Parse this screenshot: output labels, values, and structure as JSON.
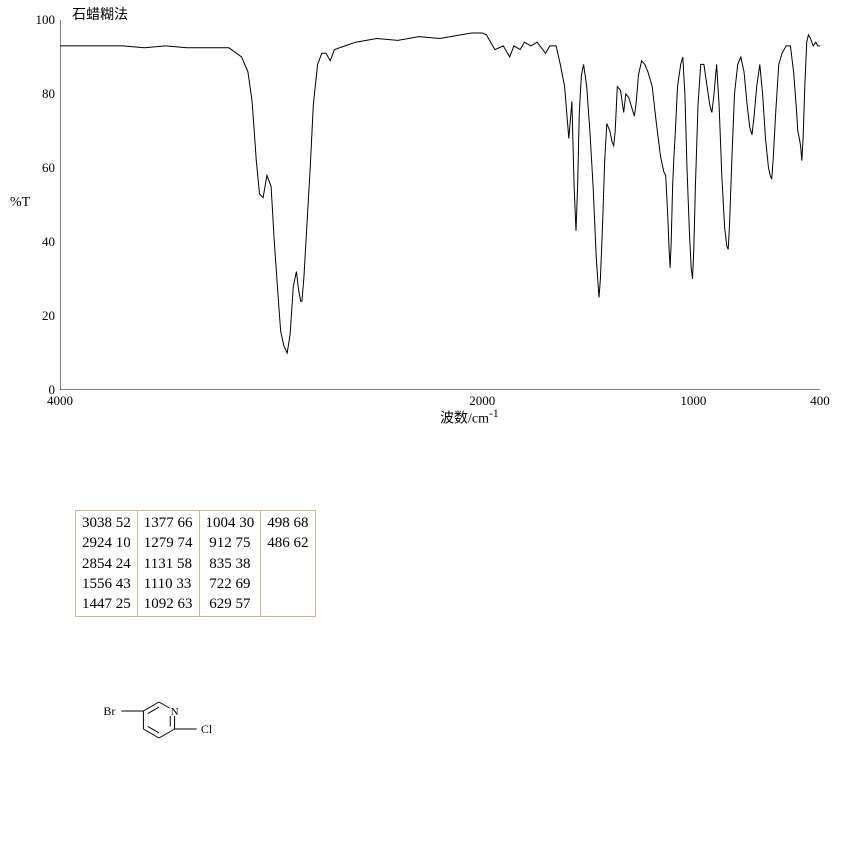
{
  "chart": {
    "title": "石蜡糊法",
    "ylabel": "%T",
    "xlabel": "波数/cm",
    "xlabel_sup": "-1",
    "xlim": [
      4000,
      400
    ],
    "ylim": [
      0,
      100
    ],
    "yticks": [
      0,
      20,
      40,
      60,
      80,
      100
    ],
    "xticks": [
      4000,
      2000,
      1000,
      400
    ],
    "line_color": "#000000",
    "background_color": "#ffffff",
    "axis_color": "#000000",
    "line_width": 1,
    "points": [
      [
        4000,
        93
      ],
      [
        3900,
        93
      ],
      [
        3800,
        93
      ],
      [
        3700,
        93
      ],
      [
        3600,
        92.5
      ],
      [
        3500,
        93
      ],
      [
        3400,
        92.5
      ],
      [
        3300,
        92.5
      ],
      [
        3200,
        92.5
      ],
      [
        3140,
        90
      ],
      [
        3110,
        86
      ],
      [
        3090,
        78
      ],
      [
        3070,
        62
      ],
      [
        3055,
        53
      ],
      [
        3038,
        52
      ],
      [
        3020,
        58
      ],
      [
        3000,
        55
      ],
      [
        2985,
        40
      ],
      [
        2970,
        28
      ],
      [
        2955,
        16
      ],
      [
        2940,
        12
      ],
      [
        2924,
        10
      ],
      [
        2910,
        15
      ],
      [
        2895,
        28
      ],
      [
        2880,
        32
      ],
      [
        2870,
        27
      ],
      [
        2860,
        24
      ],
      [
        2854,
        24
      ],
      [
        2845,
        30
      ],
      [
        2830,
        45
      ],
      [
        2815,
        60
      ],
      [
        2800,
        77
      ],
      [
        2780,
        88
      ],
      [
        2760,
        91
      ],
      [
        2740,
        91
      ],
      [
        2720,
        89
      ],
      [
        2700,
        92
      ],
      [
        2650,
        93
      ],
      [
        2600,
        94
      ],
      [
        2500,
        95
      ],
      [
        2400,
        94.5
      ],
      [
        2300,
        95.5
      ],
      [
        2200,
        95
      ],
      [
        2100,
        96
      ],
      [
        2050,
        96.5
      ],
      [
        2000,
        96.5
      ],
      [
        1980,
        96
      ],
      [
        1940,
        92
      ],
      [
        1900,
        93
      ],
      [
        1870,
        90
      ],
      [
        1850,
        93
      ],
      [
        1820,
        92
      ],
      [
        1800,
        94
      ],
      [
        1770,
        93
      ],
      [
        1740,
        94
      ],
      [
        1700,
        91
      ],
      [
        1680,
        93
      ],
      [
        1650,
        93
      ],
      [
        1630,
        88
      ],
      [
        1610,
        82
      ],
      [
        1590,
        68
      ],
      [
        1575,
        78
      ],
      [
        1565,
        55
      ],
      [
        1556,
        43
      ],
      [
        1548,
        55
      ],
      [
        1540,
        75
      ],
      [
        1530,
        85
      ],
      [
        1520,
        88
      ],
      [
        1505,
        82
      ],
      [
        1490,
        70
      ],
      [
        1475,
        55
      ],
      [
        1460,
        36
      ],
      [
        1447,
        25
      ],
      [
        1440,
        30
      ],
      [
        1430,
        45
      ],
      [
        1420,
        62
      ],
      [
        1410,
        72
      ],
      [
        1395,
        70
      ],
      [
        1385,
        67
      ],
      [
        1377,
        66
      ],
      [
        1370,
        70
      ],
      [
        1360,
        82
      ],
      [
        1345,
        81
      ],
      [
        1330,
        75
      ],
      [
        1320,
        80
      ],
      [
        1305,
        79
      ],
      [
        1290,
        76
      ],
      [
        1279,
        74
      ],
      [
        1270,
        78
      ],
      [
        1260,
        85
      ],
      [
        1245,
        89
      ],
      [
        1230,
        88
      ],
      [
        1215,
        86
      ],
      [
        1195,
        82
      ],
      [
        1175,
        72
      ],
      [
        1155,
        63
      ],
      [
        1140,
        59
      ],
      [
        1131,
        58
      ],
      [
        1122,
        48
      ],
      [
        1115,
        38
      ],
      [
        1110,
        33
      ],
      [
        1105,
        40
      ],
      [
        1098,
        55
      ],
      [
        1092,
        63
      ],
      [
        1085,
        70
      ],
      [
        1075,
        82
      ],
      [
        1060,
        88
      ],
      [
        1050,
        90
      ],
      [
        1040,
        80
      ],
      [
        1030,
        60
      ],
      [
        1018,
        42
      ],
      [
        1010,
        33
      ],
      [
        1004,
        30
      ],
      [
        998,
        38
      ],
      [
        990,
        55
      ],
      [
        978,
        77
      ],
      [
        965,
        88
      ],
      [
        950,
        88
      ],
      [
        935,
        82
      ],
      [
        922,
        77
      ],
      [
        912,
        75
      ],
      [
        902,
        80
      ],
      [
        890,
        88
      ],
      [
        878,
        77
      ],
      [
        865,
        58
      ],
      [
        852,
        44
      ],
      [
        842,
        39
      ],
      [
        835,
        38
      ],
      [
        828,
        45
      ],
      [
        818,
        62
      ],
      [
        805,
        80
      ],
      [
        790,
        88
      ],
      [
        775,
        90
      ],
      [
        760,
        86
      ],
      [
        745,
        77
      ],
      [
        733,
        71
      ],
      [
        722,
        69
      ],
      [
        712,
        74
      ],
      [
        700,
        82
      ],
      [
        685,
        88
      ],
      [
        672,
        80
      ],
      [
        658,
        68
      ],
      [
        644,
        60
      ],
      [
        636,
        58
      ],
      [
        629,
        57
      ],
      [
        622,
        62
      ],
      [
        610,
        75
      ],
      [
        595,
        88
      ],
      [
        580,
        91
      ],
      [
        560,
        93
      ],
      [
        540,
        93
      ],
      [
        525,
        86
      ],
      [
        512,
        76
      ],
      [
        505,
        70
      ],
      [
        498,
        68
      ],
      [
        492,
        66
      ],
      [
        486,
        62
      ],
      [
        480,
        68
      ],
      [
        472,
        82
      ],
      [
        463,
        94
      ],
      [
        455,
        96
      ],
      [
        445,
        95
      ],
      [
        432,
        93
      ],
      [
        420,
        94
      ],
      [
        410,
        93
      ],
      [
        400,
        93
      ]
    ]
  },
  "table": {
    "columns": [
      [
        "3038 52",
        "2924 10",
        "2854 24",
        "1556 43",
        "1447 25"
      ],
      [
        "1377 66",
        "1279 74",
        "1131 58",
        "1110 33",
        "1092 63"
      ],
      [
        "1004 30",
        " 912 75",
        " 835 38",
        " 722 69",
        " 629 57"
      ],
      [
        "498 68",
        "486 62",
        "",
        "",
        ""
      ]
    ],
    "border_color": "#c8b898",
    "fontsize": 15
  },
  "structure": {
    "left_label": "Br",
    "right_label": "Cl",
    "hetero_label": "N",
    "line_color": "#000000"
  }
}
